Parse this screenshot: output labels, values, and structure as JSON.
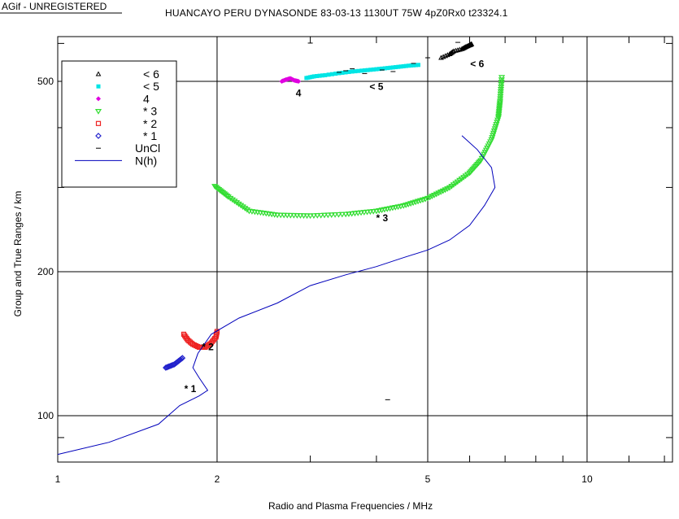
{
  "watermark": "AGif - UNREGISTERED",
  "chart_data": {
    "type": "scatter",
    "title": "HUANCAYO PERU      DYNASONDE 83-03-13 1130UT  75W 4pZ0Rx0 t23324.1",
    "xlabel": "Radio and Plasma Frequencies / MHz",
    "ylabel": "Group and True Ranges / km",
    "xscale": "log",
    "yscale": "log",
    "xlim": [
      1,
      14.5
    ],
    "ylim": [
      80,
      620
    ],
    "xticks": [
      1,
      2,
      5,
      10
    ],
    "yticks": [
      100,
      200,
      500
    ],
    "grid": true,
    "legend_position": "top-left",
    "series": [
      {
        "name": "< 6",
        "marker": "triangle-up",
        "color": "#000000",
        "points": [
          [
            5.3,
            560
          ],
          [
            5.5,
            570
          ],
          [
            5.6,
            578
          ],
          [
            5.8,
            584
          ],
          [
            5.9,
            590
          ],
          [
            6.0,
            595
          ],
          [
            6.05,
            598
          ]
        ]
      },
      {
        "name": "< 5",
        "marker": "square",
        "color": "#00e5e5",
        "points": [
          [
            2.95,
            508
          ],
          [
            3.05,
            512
          ],
          [
            3.2,
            515
          ],
          [
            3.4,
            520
          ],
          [
            3.6,
            524
          ],
          [
            3.8,
            527
          ],
          [
            4.0,
            530
          ],
          [
            4.2,
            533
          ],
          [
            4.4,
            536
          ],
          [
            4.6,
            539
          ],
          [
            4.8,
            541
          ]
        ]
      },
      {
        "name": "4",
        "marker": "diamond",
        "color": "#e000e0",
        "points": [
          [
            2.65,
            500
          ],
          [
            2.7,
            504
          ],
          [
            2.75,
            507
          ],
          [
            2.8,
            502
          ],
          [
            2.85,
            500
          ]
        ]
      },
      {
        "name": "* 3",
        "marker": "triangle-down",
        "color": "#33dd33",
        "points": [
          [
            1.98,
            302
          ],
          [
            2.1,
            287
          ],
          [
            2.3,
            268
          ],
          [
            2.6,
            263
          ],
          [
            3.0,
            262
          ],
          [
            3.5,
            264
          ],
          [
            4.0,
            268
          ],
          [
            4.5,
            275
          ],
          [
            5.0,
            285
          ],
          [
            5.5,
            300
          ],
          [
            6.0,
            322
          ],
          [
            6.3,
            342
          ],
          [
            6.6,
            378
          ],
          [
            6.8,
            420
          ],
          [
            6.85,
            455
          ],
          [
            6.9,
            510
          ]
        ]
      },
      {
        "name": "* 2",
        "marker": "square-open",
        "color": "#ee2222",
        "points": [
          [
            1.73,
            148
          ],
          [
            1.76,
            144
          ],
          [
            1.8,
            141
          ],
          [
            1.85,
            139
          ],
          [
            1.9,
            139
          ],
          [
            1.95,
            142
          ],
          [
            1.99,
            146
          ],
          [
            2.0,
            150
          ]
        ]
      },
      {
        "name": "* 1",
        "marker": "diamond-open",
        "color": "#2222cc",
        "points": [
          [
            1.6,
            126
          ],
          [
            1.63,
            127
          ],
          [
            1.66,
            128
          ],
          [
            1.69,
            130
          ],
          [
            1.72,
            132
          ]
        ]
      },
      {
        "name": "UnCl",
        "marker": "dash",
        "color": "#000000",
        "points": [
          [
            3.0,
            601
          ],
          [
            3.4,
            522
          ],
          [
            3.5,
            526
          ],
          [
            3.6,
            531
          ],
          [
            3.8,
            519
          ],
          [
            4.1,
            528
          ],
          [
            4.3,
            524
          ],
          [
            4.7,
            545
          ],
          [
            5.0,
            560
          ],
          [
            5.7,
            603
          ],
          [
            4.2,
            108
          ]
        ]
      },
      {
        "name": "N(h)",
        "marker": "line",
        "color": "#0000bb",
        "points": [
          [
            1.0,
            83
          ],
          [
            1.25,
            88
          ],
          [
            1.55,
            96
          ],
          [
            1.7,
            105
          ],
          [
            1.85,
            110
          ],
          [
            1.92,
            113
          ],
          [
            1.85,
            120
          ],
          [
            1.8,
            126
          ],
          [
            1.84,
            135
          ],
          [
            1.95,
            148
          ],
          [
            2.2,
            160
          ],
          [
            2.6,
            172
          ],
          [
            3.0,
            187
          ],
          [
            3.5,
            197
          ],
          [
            4.0,
            205
          ],
          [
            4.5,
            214
          ],
          [
            5.0,
            222
          ],
          [
            5.5,
            233
          ],
          [
            6.0,
            250
          ],
          [
            6.4,
            275
          ],
          [
            6.7,
            300
          ],
          [
            6.6,
            330
          ],
          [
            6.2,
            360
          ],
          [
            5.8,
            385
          ]
        ]
      }
    ],
    "annotations": [
      {
        "text": "< 6",
        "x": 6.2,
        "y": 535
      },
      {
        "text": "< 5",
        "x": 4.0,
        "y": 480
      },
      {
        "text": "4",
        "x": 2.85,
        "y": 465
      },
      {
        "text": "* 3",
        "x": 4.1,
        "y": 255
      },
      {
        "text": "* 2",
        "x": 1.92,
        "y": 137
      },
      {
        "text": "* 1",
        "x": 1.78,
        "y": 112
      }
    ]
  }
}
